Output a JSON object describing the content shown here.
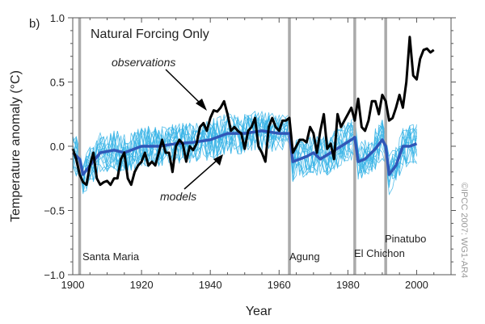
{
  "chart_data": {
    "type": "line",
    "panel_label": "b)",
    "title": "Natural Forcing Only",
    "xlabel": "Year",
    "ylabel": "Temperature anomaly (°C)",
    "xlim": [
      1900,
      2010
    ],
    "ylim": [
      -1.0,
      1.0
    ],
    "x_ticks": [
      "1900",
      "1920",
      "1940",
      "1960",
      "1980",
      "2000"
    ],
    "y_ticks": [
      "1.0",
      "0.5",
      "0.0",
      "−0.5",
      "−1.0"
    ],
    "grid": false,
    "copyright": "©IPCC 2007: WG1-AR4",
    "colors": {
      "observations": "#000000",
      "models_mean": "#2f57b8",
      "model_runs": "#38b4e6",
      "volcano_lines": "#aaaaaa"
    },
    "annotations": {
      "observations": "observations",
      "models": "models"
    },
    "volcanoes": [
      {
        "name": "Santa Maria",
        "year": 1902
      },
      {
        "name": "Agung",
        "year": 1963
      },
      {
        "name": "El Chichon",
        "year": 1982
      },
      {
        "name": "Pinatubo",
        "year": 1991
      }
    ],
    "series": [
      {
        "name": "observations",
        "x": [
          1900,
          1901,
          1902,
          1903,
          1904,
          1905,
          1906,
          1907,
          1908,
          1909,
          1910,
          1911,
          1912,
          1913,
          1914,
          1915,
          1916,
          1917,
          1918,
          1919,
          1920,
          1921,
          1922,
          1923,
          1924,
          1925,
          1926,
          1927,
          1928,
          1929,
          1930,
          1931,
          1932,
          1933,
          1934,
          1935,
          1936,
          1937,
          1938,
          1939,
          1940,
          1941,
          1942,
          1943,
          1944,
          1945,
          1946,
          1947,
          1948,
          1949,
          1950,
          1951,
          1952,
          1953,
          1954,
          1955,
          1956,
          1957,
          1958,
          1959,
          1960,
          1961,
          1962,
          1963,
          1964,
          1965,
          1966,
          1967,
          1968,
          1969,
          1970,
          1971,
          1972,
          1973,
          1974,
          1975,
          1976,
          1977,
          1978,
          1979,
          1980,
          1981,
          1982,
          1983,
          1984,
          1985,
          1986,
          1987,
          1988,
          1989,
          1990,
          1991,
          1992,
          1993,
          1994,
          1995,
          1996,
          1997,
          1998,
          1999,
          2000,
          2001,
          2002,
          2003,
          2004,
          2005
        ],
        "values": [
          -0.02,
          -0.1,
          -0.22,
          -0.28,
          -0.3,
          -0.15,
          -0.05,
          -0.25,
          -0.3,
          -0.28,
          -0.27,
          -0.3,
          -0.25,
          -0.25,
          -0.1,
          -0.05,
          -0.25,
          -0.3,
          -0.2,
          -0.15,
          -0.12,
          -0.05,
          -0.15,
          -0.12,
          -0.15,
          -0.05,
          0.05,
          -0.05,
          -0.05,
          -0.2,
          0.0,
          0.05,
          0.02,
          -0.12,
          0.0,
          -0.03,
          0.02,
          0.15,
          0.18,
          0.12,
          0.22,
          0.28,
          0.27,
          0.3,
          0.35,
          0.25,
          0.12,
          0.15,
          0.12,
          0.1,
          -0.02,
          0.12,
          0.15,
          0.22,
          0.0,
          -0.05,
          -0.12,
          0.15,
          0.22,
          0.15,
          0.12,
          0.2,
          0.2,
          0.22,
          -0.05,
          0.0,
          0.05,
          0.05,
          0.03,
          0.15,
          0.1,
          -0.05,
          0.12,
          0.25,
          -0.02,
          0.02,
          -0.1,
          0.25,
          0.15,
          0.2,
          0.25,
          0.3,
          0.2,
          0.37,
          0.15,
          0.12,
          0.2,
          0.35,
          0.35,
          0.25,
          0.4,
          0.35,
          0.2,
          0.22,
          0.3,
          0.4,
          0.3,
          0.5,
          0.85,
          0.55,
          0.52,
          0.68,
          0.75,
          0.76,
          0.73,
          0.75
        ]
      },
      {
        "name": "models",
        "x": [
          1900,
          1902,
          1903,
          1905,
          1908,
          1912,
          1915,
          1920,
          1925,
          1930,
          1935,
          1940,
          1945,
          1950,
          1955,
          1960,
          1963,
          1964,
          1966,
          1968,
          1970,
          1972,
          1975,
          1978,
          1981,
          1982,
          1983,
          1985,
          1988,
          1990,
          1991,
          1992,
          1994,
          1996,
          1998,
          2000
        ],
        "values": [
          -0.05,
          -0.1,
          -0.22,
          -0.15,
          -0.05,
          -0.03,
          -0.05,
          0.0,
          0.0,
          0.02,
          0.03,
          0.05,
          0.1,
          0.1,
          0.12,
          0.1,
          0.1,
          -0.12,
          -0.1,
          -0.08,
          -0.05,
          -0.1,
          -0.05,
          0.0,
          0.05,
          0.07,
          -0.12,
          -0.1,
          -0.02,
          0.05,
          0.0,
          -0.22,
          -0.15,
          0.0,
          0.0,
          0.02
        ]
      }
    ]
  }
}
